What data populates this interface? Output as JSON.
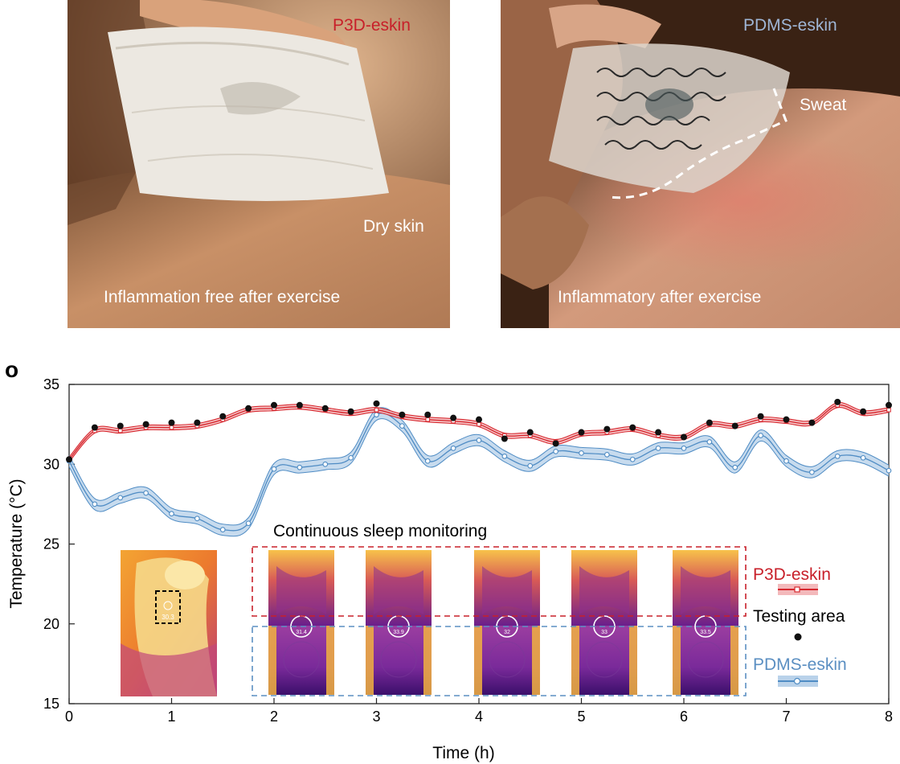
{
  "panel_left": {
    "label": "P3D-eskin",
    "label_color": "#c8202a",
    "annotation": "Dry skin",
    "caption": "Inflammation free after exercise"
  },
  "panel_right": {
    "label": "PDMS-eskin",
    "label_color": "#9fb6d6",
    "annotation": "Sweat",
    "caption": "Inflammatory after exercise"
  },
  "panel_letter": "o",
  "chart_data": {
    "type": "line",
    "xlabel": "Time (h)",
    "ylabel": "Temperature (°C)",
    "xlim": [
      0,
      8
    ],
    "ylim": [
      15,
      35
    ],
    "xticks": [
      0,
      1,
      2,
      3,
      4,
      5,
      6,
      7,
      8
    ],
    "yticks": [
      15,
      20,
      25,
      30,
      35
    ],
    "grid": false,
    "legend_position": "right",
    "inset_title": "Continuous sleep monitoring",
    "inset_readings": {
      "reference": "30.3",
      "frames": [
        "31.4",
        "33.9",
        "32",
        "33",
        "33.5"
      ]
    },
    "series": [
      {
        "name": "P3D-eskin",
        "color": "#d7282f",
        "x": [
          0,
          0.25,
          0.5,
          0.75,
          1.0,
          1.25,
          1.5,
          1.75,
          2.0,
          2.25,
          2.5,
          2.75,
          3.0,
          3.25,
          3.5,
          3.75,
          4.0,
          4.25,
          4.5,
          4.75,
          5.0,
          5.25,
          5.5,
          5.75,
          6.0,
          6.25,
          6.5,
          6.75,
          7.0,
          7.25,
          7.5,
          7.75,
          8.0
        ],
        "y": [
          30.3,
          32.1,
          32.1,
          32.3,
          32.3,
          32.4,
          32.8,
          33.4,
          33.5,
          33.6,
          33.4,
          33.2,
          33.4,
          33.0,
          32.8,
          32.7,
          32.5,
          31.8,
          31.8,
          31.4,
          31.9,
          32.0,
          32.2,
          31.8,
          31.7,
          32.5,
          32.4,
          32.8,
          32.7,
          32.6,
          33.7,
          33.2,
          33.4
        ]
      },
      {
        "name": "Testing area",
        "color": "#111111",
        "x": [
          0,
          0.25,
          0.5,
          0.75,
          1.0,
          1.25,
          1.5,
          1.75,
          2.0,
          2.25,
          2.5,
          2.75,
          3.0,
          3.25,
          3.5,
          3.75,
          4.0,
          4.25,
          4.5,
          4.75,
          5.0,
          5.25,
          5.5,
          5.75,
          6.0,
          6.25,
          6.5,
          6.75,
          7.0,
          7.25,
          7.5,
          7.75,
          8.0
        ],
        "y": [
          30.3,
          32.3,
          32.4,
          32.5,
          32.6,
          32.6,
          33.0,
          33.5,
          33.7,
          33.7,
          33.5,
          33.3,
          33.8,
          33.1,
          33.1,
          32.9,
          32.8,
          31.6,
          32.0,
          31.3,
          32.0,
          32.2,
          32.3,
          32.0,
          31.7,
          32.6,
          32.4,
          33.0,
          32.8,
          32.6,
          33.9,
          33.3,
          33.7
        ]
      },
      {
        "name": "PDMS-eskin",
        "color": "#4f8cc4",
        "x": [
          0,
          0.25,
          0.5,
          0.75,
          1.0,
          1.25,
          1.5,
          1.75,
          2.0,
          2.25,
          2.5,
          2.75,
          3.0,
          3.25,
          3.5,
          3.75,
          4.0,
          4.25,
          4.5,
          4.75,
          5.0,
          5.25,
          5.5,
          5.75,
          6.0,
          6.25,
          6.5,
          6.75,
          7.0,
          7.25,
          7.5,
          7.75,
          8.0
        ],
        "y": [
          30.2,
          27.5,
          27.9,
          28.2,
          26.9,
          26.6,
          25.9,
          26.3,
          29.7,
          29.8,
          30.0,
          30.4,
          33.1,
          32.4,
          30.2,
          31.0,
          31.5,
          30.5,
          29.9,
          30.8,
          30.7,
          30.6,
          30.3,
          31.0,
          31.0,
          31.4,
          29.8,
          31.8,
          30.2,
          29.5,
          30.5,
          30.4,
          29.6
        ]
      }
    ]
  }
}
